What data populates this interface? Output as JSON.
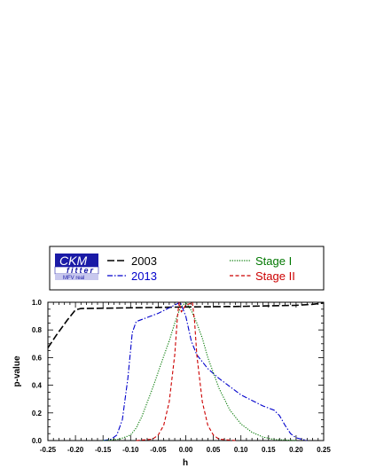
{
  "chart_data": {
    "type": "line",
    "xlabel": "h",
    "ylabel": "p-value",
    "xlim": [
      -0.25,
      0.25
    ],
    "ylim": [
      0,
      1
    ],
    "xticks": [
      "-0.25",
      "-0.20",
      "-0.15",
      "-0.10",
      "-0.05",
      "0.00",
      "0.05",
      "0.10",
      "0.15",
      "0.20",
      "0.25"
    ],
    "yticks": [
      "0.0",
      "0.2",
      "0.4",
      "0.6",
      "0.8",
      "1.0"
    ],
    "logo": {
      "main": "CKM",
      "sub": "fitter",
      "tag": "MFV real"
    },
    "series": [
      {
        "name": "2003",
        "color": "#000000",
        "dash": "long-dash",
        "points": [
          [
            -0.25,
            0.67
          ],
          [
            -0.235,
            0.76
          ],
          [
            -0.215,
            0.87
          ],
          [
            -0.2,
            0.945
          ],
          [
            -0.19,
            0.955
          ],
          [
            -0.15,
            0.957
          ],
          [
            -0.1,
            0.96
          ],
          [
            -0.05,
            0.963
          ],
          [
            0.0,
            0.966
          ],
          [
            0.05,
            0.968
          ],
          [
            0.1,
            0.97
          ],
          [
            0.15,
            0.974
          ],
          [
            0.2,
            0.978
          ],
          [
            0.23,
            0.985
          ],
          [
            0.25,
            0.995
          ]
        ]
      },
      {
        "name": "2013",
        "color": "#0000cc",
        "dash": "dash-dot",
        "points": [
          [
            -0.15,
            0.0
          ],
          [
            -0.135,
            0.01
          ],
          [
            -0.125,
            0.04
          ],
          [
            -0.115,
            0.15
          ],
          [
            -0.105,
            0.45
          ],
          [
            -0.097,
            0.78
          ],
          [
            -0.09,
            0.86
          ],
          [
            -0.07,
            0.89
          ],
          [
            -0.05,
            0.92
          ],
          [
            -0.03,
            0.96
          ],
          [
            -0.01,
            1.0
          ],
          [
            0.0,
            0.9
          ],
          [
            0.01,
            0.72
          ],
          [
            0.02,
            0.62
          ],
          [
            0.04,
            0.52
          ],
          [
            0.06,
            0.45
          ],
          [
            0.08,
            0.39
          ],
          [
            0.1,
            0.33
          ],
          [
            0.12,
            0.29
          ],
          [
            0.14,
            0.25
          ],
          [
            0.16,
            0.22
          ],
          [
            0.17,
            0.18
          ],
          [
            0.18,
            0.11
          ],
          [
            0.19,
            0.05
          ],
          [
            0.2,
            0.02
          ],
          [
            0.22,
            0.0
          ]
        ]
      },
      {
        "name": "Stage I",
        "color": "#007700",
        "dash": "dotted",
        "points": [
          [
            -0.15,
            0.0
          ],
          [
            -0.12,
            0.01
          ],
          [
            -0.1,
            0.04
          ],
          [
            -0.09,
            0.09
          ],
          [
            -0.08,
            0.17
          ],
          [
            -0.06,
            0.38
          ],
          [
            -0.04,
            0.61
          ],
          [
            -0.03,
            0.72
          ],
          [
            -0.02,
            0.85
          ],
          [
            -0.01,
            0.96
          ],
          [
            0.0,
            1.0
          ],
          [
            0.01,
            0.94
          ],
          [
            0.02,
            0.85
          ],
          [
            0.03,
            0.74
          ],
          [
            0.04,
            0.6
          ],
          [
            0.06,
            0.38
          ],
          [
            0.08,
            0.22
          ],
          [
            0.1,
            0.12
          ],
          [
            0.12,
            0.06
          ],
          [
            0.14,
            0.025
          ],
          [
            0.16,
            0.008
          ],
          [
            0.2,
            0.0
          ]
        ]
      },
      {
        "name": "Stage II",
        "color": "#cc0000",
        "dash": "dashed",
        "points": [
          [
            -0.09,
            0.0
          ],
          [
            -0.06,
            0.01
          ],
          [
            -0.05,
            0.04
          ],
          [
            -0.04,
            0.11
          ],
          [
            -0.03,
            0.28
          ],
          [
            -0.02,
            0.62
          ],
          [
            -0.015,
            0.9
          ],
          [
            -0.012,
            1.0
          ],
          [
            -0.008,
            0.93
          ],
          [
            0.0,
            0.98
          ],
          [
            0.008,
            0.99
          ],
          [
            0.012,
            1.0
          ],
          [
            0.016,
            0.86
          ],
          [
            0.02,
            0.62
          ],
          [
            0.03,
            0.28
          ],
          [
            0.04,
            0.11
          ],
          [
            0.05,
            0.04
          ],
          [
            0.06,
            0.01
          ],
          [
            0.09,
            0.0
          ]
        ]
      }
    ]
  }
}
